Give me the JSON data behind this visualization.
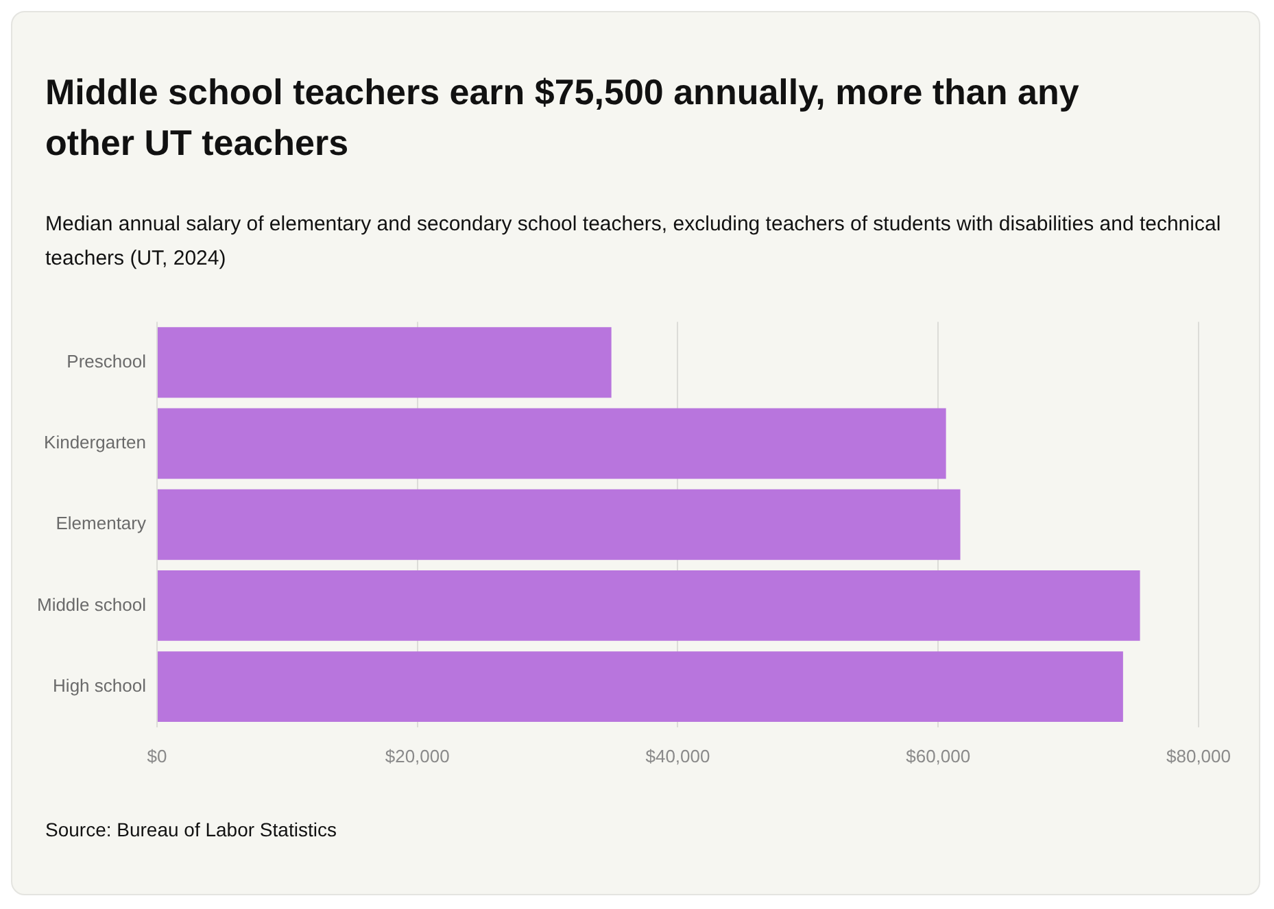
{
  "chart_data": {
    "type": "bar",
    "orientation": "horizontal",
    "title": "Middle school teachers earn $75,500 annually, more than any other UT teachers",
    "subtitle": "Median annual salary of elementary and secondary school teachers, excluding teachers of students with disabilities and technical teachers (UT, 2024)",
    "categories": [
      "Preschool",
      "Kindergarten",
      "Elementary",
      "Middle school",
      "High school"
    ],
    "values": [
      34900,
      60600,
      61700,
      75500,
      74200
    ],
    "color": "#b875dd",
    "xlim": [
      0,
      80000
    ],
    "xticks": [
      {
        "value": 0,
        "label": "$0"
      },
      {
        "value": 20000,
        "label": "$20,000"
      },
      {
        "value": 40000,
        "label": "$40,000"
      },
      {
        "value": 60000,
        "label": "$60,000"
      },
      {
        "value": 80000,
        "label": "$80,000"
      }
    ],
    "grid": "x",
    "annotations": [
      "Source: Bureau of Labor Statistics"
    ]
  }
}
